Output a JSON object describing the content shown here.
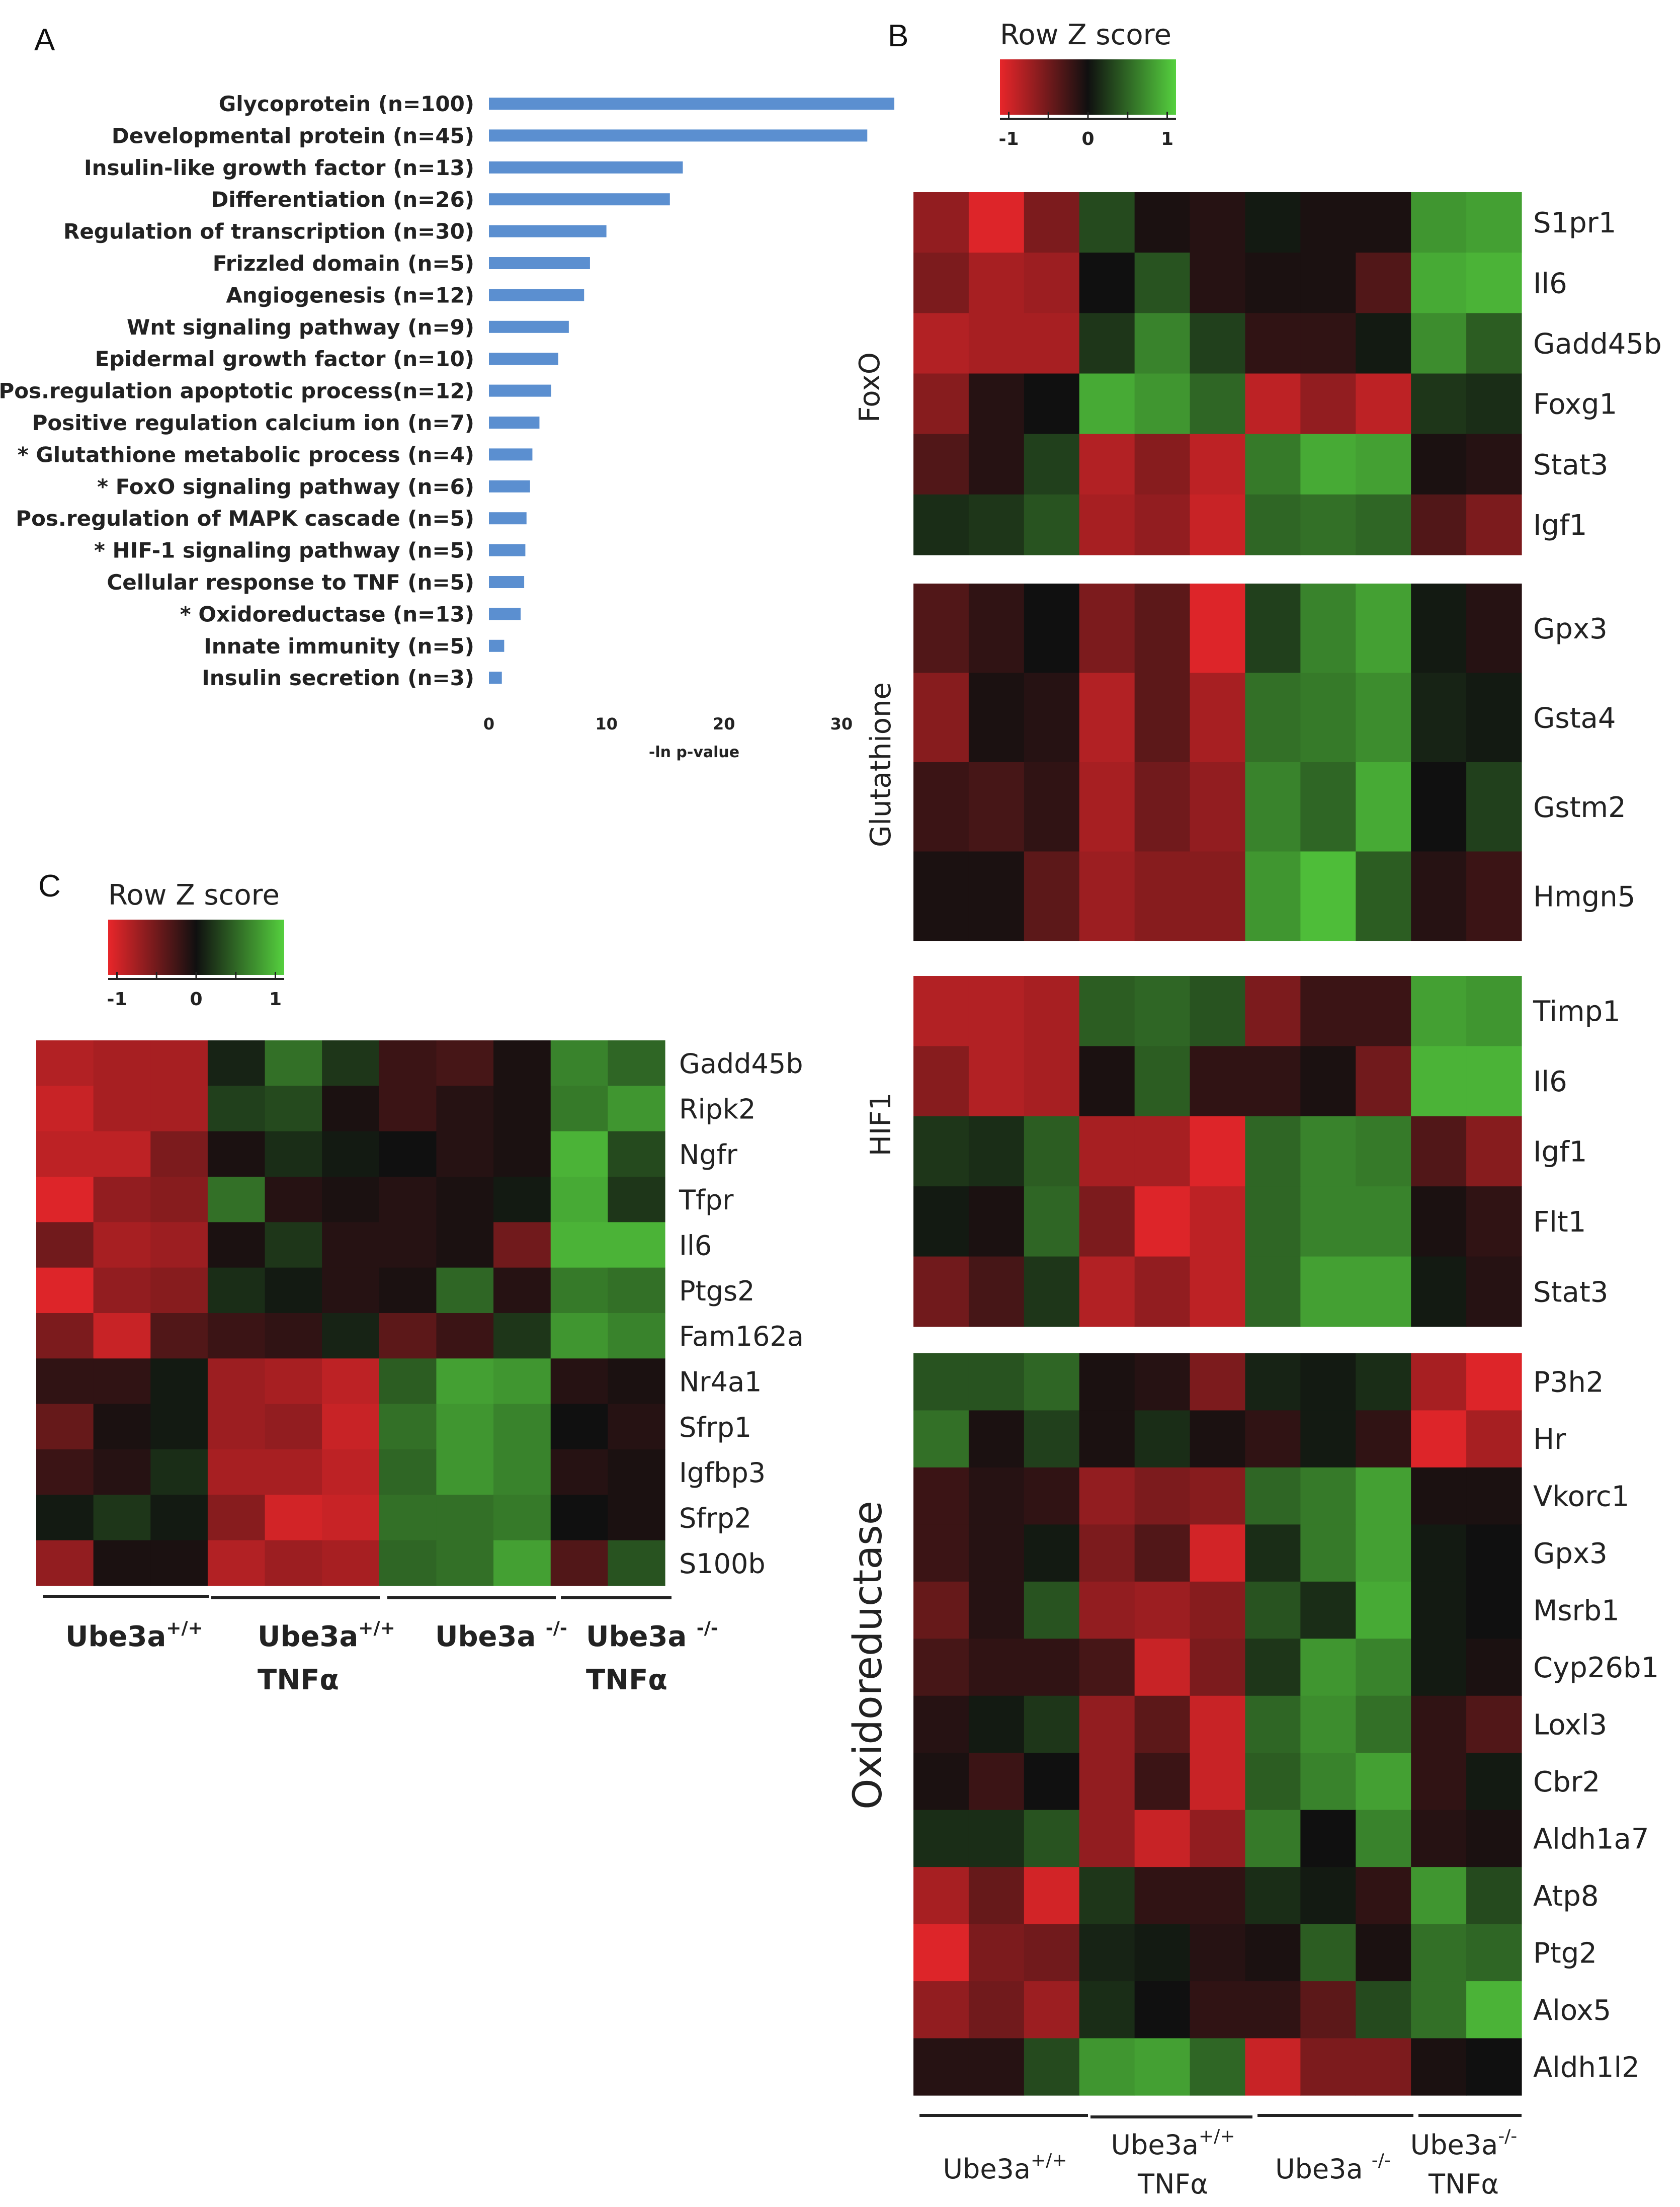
{
  "panels": {
    "a": "A",
    "b": "B",
    "c": "C"
  },
  "colors": {
    "bar": "#5b8fd0",
    "low": "#e8262a",
    "mid": "#101010",
    "high": "#55d03e"
  },
  "chart_data": [
    {
      "type": "bar",
      "orientation": "horizontal",
      "panel": "A",
      "categories": [
        "Glycoprotein (n=100)",
        "Developmental protein (n=45)",
        "Insulin-like growth factor (n=13)",
        "Differentiation (n=26)",
        "Regulation of transcription (n=30)",
        "Frizzled domain (n=5)",
        "Angiogenesis (n=12)",
        "Wnt signaling pathway (n=9)",
        "Epidermal growth factor (n=10)",
        "Pos.regulation apoptotic process(n=12)",
        "Positive regulation calcium ion (n=7)",
        "* Glutathione metabolic process (n=4)",
        "* FoxO signaling pathway (n=6)",
        "Pos.regulation of MAPK cascade (n=5)",
        "* HIF-1 signaling pathway (n=5)",
        "Cellular response to TNF (n=5)",
        "* Oxidoreductase (n=13)",
        "Innate immunity (n=5)",
        "Insulin secretion (n=3)"
      ],
      "values": [
        34.5,
        32.2,
        16.5,
        15.4,
        10.0,
        8.6,
        8.1,
        6.8,
        5.9,
        5.3,
        4.3,
        3.7,
        3.5,
        3.2,
        3.1,
        3.0,
        2.7,
        1.3,
        1.1
      ],
      "xlabel": "-ln p-value",
      "xlim": [
        0,
        34.5
      ],
      "xticks": [
        "0",
        "10",
        "20",
        "30"
      ]
    },
    {
      "type": "heatmap",
      "panel": "B",
      "legend": {
        "title": "Row Z score",
        "ticks": [
          "-1",
          "0",
          "1"
        ]
      },
      "groups": [
        [
          "Ube3a",
          "+/+",
          ""
        ],
        [
          "Ube3a",
          "+/+",
          "TNFα"
        ],
        [
          "Ube3a ",
          "-/-",
          ""
        ],
        [
          "Ube3a",
          "-/-",
          "TNFα"
        ]
      ],
      "blocks": [
        {
          "name": "FoxO",
          "rows": [
            {
              "gene": "S1pr1",
              "z": [
                -0.6,
                -0.95,
                -0.5,
                0.3,
                -0.05,
                -0.1,
                0.05,
                -0.05,
                -0.05,
                0.7,
                0.75
              ]
            },
            {
              "gene": "Il6",
              "z": [
                -0.5,
                -0.7,
                -0.65,
                0.0,
                0.35,
                -0.1,
                -0.05,
                -0.05,
                -0.3,
                0.8,
                0.85
              ]
            },
            {
              "gene": "Gadd45b",
              "z": [
                -0.75,
                -0.7,
                -0.7,
                0.2,
                0.6,
                0.25,
                -0.15,
                -0.15,
                0.05,
                0.65,
                0.4
              ]
            },
            {
              "gene": "Foxg1",
              "z": [
                -0.55,
                -0.1,
                0.0,
                0.8,
                0.7,
                0.45,
                -0.8,
                -0.6,
                -0.8,
                0.2,
                0.15
              ]
            },
            {
              "gene": "Stat3",
              "z": [
                -0.3,
                -0.1,
                0.25,
                -0.75,
                -0.55,
                -0.8,
                0.55,
                0.8,
                0.75,
                -0.05,
                -0.1
              ]
            },
            {
              "gene": "Igf1",
              "z": [
                0.15,
                0.2,
                0.35,
                -0.7,
                -0.6,
                -0.85,
                0.45,
                0.5,
                0.45,
                -0.3,
                -0.5
              ]
            }
          ]
        },
        {
          "name": "Glutathione",
          "rows": [
            {
              "gene": "Gpx3",
              "z": [
                -0.3,
                -0.15,
                0.0,
                -0.5,
                -0.35,
                -0.95,
                0.25,
                0.6,
                0.75,
                0.05,
                -0.1
              ]
            },
            {
              "gene": "Gsta4",
              "z": [
                -0.55,
                -0.05,
                -0.1,
                -0.75,
                -0.35,
                -0.7,
                0.5,
                0.55,
                0.65,
                0.1,
                0.05
              ]
            },
            {
              "gene": "Gstm2",
              "z": [
                -0.2,
                -0.25,
                -0.15,
                -0.7,
                -0.45,
                -0.6,
                0.6,
                0.45,
                0.8,
                0.0,
                0.25
              ]
            },
            {
              "gene": "Hmgn5",
              "z": [
                -0.05,
                -0.05,
                -0.35,
                -0.65,
                -0.55,
                -0.55,
                0.7,
                0.9,
                0.4,
                -0.1,
                -0.2
              ]
            }
          ]
        },
        {
          "name": "HIF1",
          "rows": [
            {
              "gene": "Timp1",
              "z": [
                -0.75,
                -0.75,
                -0.7,
                0.4,
                0.45,
                0.35,
                -0.5,
                -0.2,
                -0.2,
                0.75,
                0.7
              ]
            },
            {
              "gene": "Il6",
              "z": [
                -0.55,
                -0.75,
                -0.7,
                -0.05,
                0.4,
                -0.15,
                -0.15,
                -0.05,
                -0.45,
                0.85,
                0.85
              ]
            },
            {
              "gene": "Igf1",
              "z": [
                0.2,
                0.15,
                0.4,
                -0.7,
                -0.7,
                -0.95,
                0.45,
                0.6,
                0.55,
                -0.3,
                -0.55
              ]
            },
            {
              "gene": "Flt1",
              "z": [
                0.05,
                -0.05,
                0.45,
                -0.5,
                -0.95,
                -0.8,
                0.45,
                0.6,
                0.6,
                -0.05,
                -0.15
              ]
            },
            {
              "gene": "Stat3",
              "z": [
                -0.45,
                -0.25,
                0.2,
                -0.75,
                -0.6,
                -0.8,
                0.45,
                0.75,
                0.75,
                0.05,
                -0.1
              ]
            }
          ]
        },
        {
          "name": "Oxidoreductase",
          "rows": [
            {
              "gene": "P3h2",
              "z": [
                0.35,
                0.35,
                0.45,
                -0.05,
                -0.1,
                -0.5,
                0.1,
                0.05,
                0.15,
                -0.7,
                -0.95
              ]
            },
            {
              "gene": "Hr",
              "z": [
                0.5,
                -0.05,
                0.25,
                -0.05,
                0.15,
                -0.05,
                -0.15,
                0.05,
                -0.15,
                -0.95,
                -0.7
              ]
            },
            {
              "gene": "Vkorc1",
              "z": [
                -0.2,
                -0.1,
                -0.15,
                -0.6,
                -0.5,
                -0.55,
                0.45,
                0.55,
                0.75,
                -0.05,
                -0.05
              ]
            },
            {
              "gene": "Gpx3",
              "z": [
                -0.2,
                -0.1,
                0.05,
                -0.5,
                -0.3,
                -0.9,
                0.15,
                0.55,
                0.75,
                0.05,
                0.0
              ]
            },
            {
              "gene": "Msrb1",
              "z": [
                -0.4,
                -0.1,
                0.35,
                -0.6,
                -0.65,
                -0.55,
                0.35,
                0.15,
                0.8,
                0.05,
                0.0
              ]
            },
            {
              "gene": "Cyp26b1",
              "z": [
                -0.25,
                -0.15,
                -0.15,
                -0.25,
                -0.85,
                -0.5,
                0.2,
                0.7,
                0.6,
                0.05,
                -0.05
              ]
            },
            {
              "gene": "Loxl3",
              "z": [
                -0.1,
                0.05,
                0.2,
                -0.6,
                -0.35,
                -0.85,
                0.45,
                0.65,
                0.5,
                -0.15,
                -0.3
              ]
            },
            {
              "gene": "Cbr2",
              "z": [
                -0.05,
                -0.2,
                0.0,
                -0.6,
                -0.2,
                -0.85,
                0.4,
                0.6,
                0.75,
                -0.15,
                0.05
              ]
            },
            {
              "gene": "Aldh1a7",
              "z": [
                0.15,
                0.15,
                0.35,
                -0.6,
                -0.85,
                -0.6,
                0.55,
                0.0,
                0.6,
                -0.1,
                -0.05
              ]
            },
            {
              "gene": "Atp8",
              "z": [
                -0.7,
                -0.4,
                -0.9,
                0.2,
                -0.15,
                -0.15,
                0.15,
                0.05,
                -0.15,
                0.7,
                0.3
              ]
            },
            {
              "gene": "Ptg2",
              "z": [
                -0.95,
                -0.5,
                -0.45,
                0.1,
                0.05,
                -0.1,
                -0.05,
                0.4,
                -0.05,
                0.5,
                0.45
              ]
            },
            {
              "gene": "Alox5",
              "z": [
                -0.6,
                -0.45,
                -0.65,
                0.15,
                0.0,
                -0.15,
                -0.15,
                -0.35,
                0.3,
                0.5,
                0.85
              ]
            },
            {
              "gene": "Aldh1l2",
              "z": [
                -0.1,
                -0.1,
                0.3,
                0.7,
                0.75,
                0.45,
                -0.85,
                -0.5,
                -0.5,
                -0.05,
                0.0
              ]
            }
          ]
        }
      ]
    },
    {
      "type": "heatmap",
      "panel": "C",
      "legend": {
        "title": "Row Z score",
        "ticks": [
          "-1",
          "0",
          "1"
        ]
      },
      "groups": [
        [
          "Ube3a",
          "+/+",
          ""
        ],
        [
          "Ube3a",
          "+/+",
          "TNFα"
        ],
        [
          "Ube3a ",
          "-/-",
          ""
        ],
        [
          "Ube3a ",
          "-/-",
          "TNFα"
        ]
      ],
      "rows": [
        {
          "gene": "Gadd45b",
          "z": [
            -0.75,
            -0.7,
            -0.7,
            0.1,
            0.5,
            0.2,
            -0.2,
            -0.25,
            -0.05,
            0.6,
            0.45
          ]
        },
        {
          "gene": "Ripk2",
          "z": [
            -0.85,
            -0.7,
            -0.7,
            0.25,
            0.3,
            -0.05,
            -0.2,
            -0.1,
            -0.05,
            0.55,
            0.7
          ]
        },
        {
          "gene": "Ngfr",
          "z": [
            -0.8,
            -0.8,
            -0.5,
            -0.05,
            0.15,
            0.05,
            0.0,
            -0.1,
            -0.05,
            0.85,
            0.3
          ]
        },
        {
          "gene": "Tfpr",
          "z": [
            -0.95,
            -0.6,
            -0.55,
            0.5,
            -0.1,
            -0.05,
            -0.1,
            -0.05,
            0.05,
            0.8,
            0.2
          ]
        },
        {
          "gene": "Il6",
          "z": [
            -0.45,
            -0.7,
            -0.65,
            -0.05,
            0.2,
            -0.1,
            -0.1,
            -0.05,
            -0.45,
            0.85,
            0.85
          ]
        },
        {
          "gene": "Ptgs2",
          "z": [
            -0.95,
            -0.6,
            -0.55,
            0.15,
            0.05,
            -0.1,
            -0.05,
            0.45,
            -0.1,
            0.55,
            0.5
          ]
        },
        {
          "gene": "Fam162a",
          "z": [
            -0.5,
            -0.85,
            -0.3,
            -0.2,
            -0.15,
            0.1,
            -0.35,
            -0.2,
            0.2,
            0.7,
            0.6
          ]
        },
        {
          "gene": "Nr4a1",
          "z": [
            -0.15,
            -0.15,
            0.05,
            -0.65,
            -0.7,
            -0.8,
            0.4,
            0.75,
            0.7,
            -0.1,
            -0.05
          ]
        },
        {
          "gene": "Sfrp1",
          "z": [
            -0.4,
            -0.05,
            0.05,
            -0.65,
            -0.6,
            -0.85,
            0.5,
            0.7,
            0.6,
            0.0,
            -0.1
          ]
        },
        {
          "gene": "Igfbp3",
          "z": [
            -0.2,
            -0.1,
            0.15,
            -0.7,
            -0.7,
            -0.8,
            0.45,
            0.7,
            0.6,
            -0.1,
            -0.05
          ]
        },
        {
          "gene": "Sfrp2",
          "z": [
            0.05,
            0.2,
            0.05,
            -0.55,
            -0.9,
            -0.85,
            0.5,
            0.5,
            0.55,
            0.0,
            -0.05
          ]
        },
        {
          "gene": "S100b",
          "z": [
            -0.6,
            -0.05,
            -0.05,
            -0.75,
            -0.65,
            -0.7,
            0.45,
            0.5,
            0.75,
            -0.3,
            0.35
          ]
        }
      ]
    }
  ]
}
